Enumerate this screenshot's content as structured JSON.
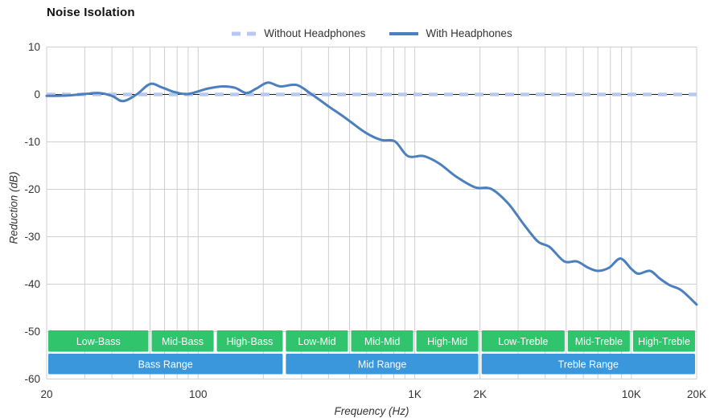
{
  "title": "Noise Isolation",
  "legend": [
    {
      "label": "Without Headphones",
      "color": "#b7c8f1",
      "style": "dashed"
    },
    {
      "label": "With Headphones",
      "color": "#4b7fbe",
      "style": "solid"
    }
  ],
  "chart_data": {
    "type": "line",
    "title": "Noise Isolation",
    "xlabel": "Frequency (Hz)",
    "ylabel": "Reduction (dB)",
    "x_scale": "log",
    "xlim": [
      20,
      20000
    ],
    "ylim": [
      -60,
      10
    ],
    "grid": true,
    "legend_position": "top-center",
    "colors": {
      "grid": "#cfcfcf",
      "zero_line": "#1a1a1a",
      "tick_text": "#333333",
      "band_text": "#ffffff",
      "green_band": "#30c46d",
      "blue_band": "#3b97db"
    },
    "x_ticks": [
      {
        "value": 20,
        "label": "20"
      },
      {
        "value": 100,
        "label": "100"
      },
      {
        "value": 1000,
        "label": "1K"
      },
      {
        "value": 2000,
        "label": "2K"
      },
      {
        "value": 10000,
        "label": "10K"
      },
      {
        "value": 20000,
        "label": "20K"
      }
    ],
    "y_ticks": [
      {
        "value": 10,
        "label": "10"
      },
      {
        "value": 0,
        "label": "0"
      },
      {
        "value": -10,
        "label": "-10"
      },
      {
        "value": -20,
        "label": "-20"
      },
      {
        "value": -30,
        "label": "-30"
      },
      {
        "value": -40,
        "label": "-40"
      },
      {
        "value": -50,
        "label": "-50"
      },
      {
        "value": -60,
        "label": "-60"
      }
    ],
    "grid_x": [
      30,
      40,
      50,
      60,
      70,
      80,
      90,
      100,
      200,
      300,
      400,
      500,
      600,
      700,
      800,
      900,
      1000,
      2000,
      3000,
      4000,
      5000,
      6000,
      7000,
      8000,
      9000,
      10000,
      20000
    ],
    "series": [
      {
        "name": "Without Headphones",
        "style": "dashed",
        "color": "#b7c8f1",
        "x": [
          20,
          20000
        ],
        "y": [
          0,
          0
        ]
      },
      {
        "name": "With Headphones",
        "style": "solid",
        "color": "#4b7fbe",
        "x": [
          20,
          25,
          30,
          35,
          40,
          45,
          52,
          60,
          68,
          78,
          90,
          110,
          130,
          148,
          167,
          185,
          210,
          240,
          285,
          335,
          400,
          480,
          590,
          700,
          810,
          930,
          1100,
          1300,
          1550,
          1900,
          2250,
          2700,
          3200,
          3700,
          4200,
          4900,
          5600,
          6300,
          7000,
          7900,
          8900,
          10000,
          10800,
          12200,
          13500,
          15000,
          17000,
          20000
        ],
        "y": [
          -0.3,
          -0.2,
          0.1,
          0.3,
          -0.3,
          -1.4,
          0.0,
          2.2,
          1.5,
          0.5,
          0.1,
          1.2,
          1.7,
          1.4,
          0.3,
          1.2,
          2.5,
          1.7,
          2.0,
          0.0,
          -2.5,
          -5.0,
          -8.0,
          -9.6,
          -9.9,
          -13.0,
          -13.0,
          -14.6,
          -17.3,
          -19.6,
          -19.9,
          -23.0,
          -27.5,
          -31.0,
          -32.2,
          -35.2,
          -35.2,
          -36.5,
          -37.2,
          -36.5,
          -34.6,
          -36.8,
          -37.8,
          -37.2,
          -38.8,
          -40.2,
          -41.3,
          -44.3
        ]
      }
    ],
    "bands": {
      "sub_ranges": [
        {
          "label": "Low-Bass",
          "from": 20,
          "to": 60
        },
        {
          "label": "Mid-Bass",
          "from": 60,
          "to": 120
        },
        {
          "label": "High-Bass",
          "from": 120,
          "to": 250
        },
        {
          "label": "Low-Mid",
          "from": 250,
          "to": 500
        },
        {
          "label": "Mid-Mid",
          "from": 500,
          "to": 1000
        },
        {
          "label": "High-Mid",
          "from": 1000,
          "to": 2000
        },
        {
          "label": "Low-Treble",
          "from": 2000,
          "to": 5000
        },
        {
          "label": "Mid-Treble",
          "from": 5000,
          "to": 10000
        },
        {
          "label": "High-Treble",
          "from": 10000,
          "to": 20000
        }
      ],
      "main_ranges": [
        {
          "label": "Bass Range",
          "from": 20,
          "to": 250
        },
        {
          "label": "Mid Range",
          "from": 250,
          "to": 2000
        },
        {
          "label": "Treble Range",
          "from": 2000,
          "to": 20000
        }
      ]
    }
  }
}
